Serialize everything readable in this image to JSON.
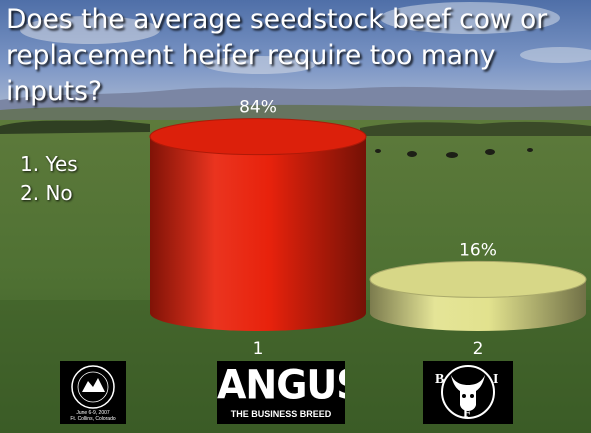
{
  "slide": {
    "title": "Does the average seedstock beef cow or\nreplacement heifer require too many\ninputs?",
    "options": [
      "1. Yes",
      "2. No"
    ]
  },
  "colors": {
    "bar_yes": "#e8220c",
    "bar_no": "#e2e28e",
    "title_text": "#ffffff"
  },
  "chart_data": {
    "type": "bar",
    "style": "3d-cylinder",
    "categories": [
      "1",
      "2"
    ],
    "values": [
      84,
      16
    ],
    "data_labels": [
      "84%",
      "16%"
    ],
    "ylim": [
      0,
      100
    ]
  },
  "logos": {
    "seal_icon": "bif-2007-meeting-seal-icon",
    "seal_lines": [
      "June 6-9, 2007",
      "Ft. Collins, Colorado"
    ],
    "angus_word": "ANGUS",
    "angus_tagline": "THE BUSINESS BREED",
    "bif_letters": [
      "B",
      "I",
      "F"
    ],
    "bif_icon": "bull-head-icon"
  }
}
